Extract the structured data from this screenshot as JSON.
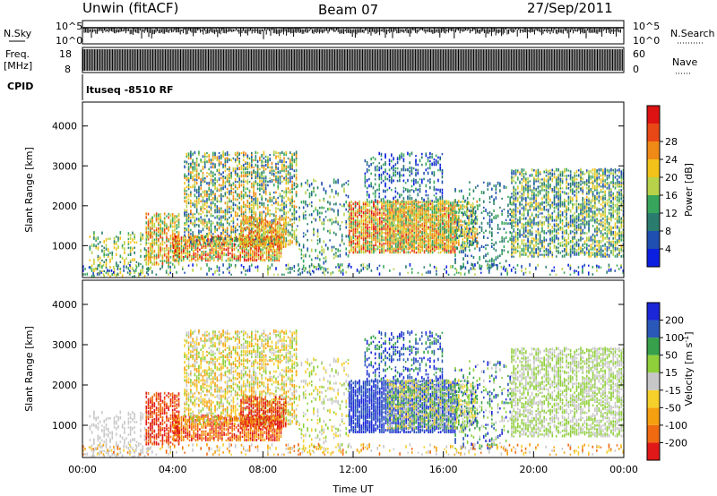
{
  "header": {
    "station": "Unwin (fitACF)",
    "beam": "Beam 07",
    "date": "27/Sep/2011"
  },
  "strips": {
    "nsky_label": "N.Sky",
    "nsky_ticks": [
      "10^5",
      "10^0"
    ],
    "nsky_ticks_right": [
      "10^5",
      "10^0"
    ],
    "nsearch_label": "N.Search",
    "freq_label_1": "Freq.",
    "freq_label_2": "[MHz]",
    "freq_ticks": [
      "18",
      "8"
    ],
    "nave_ticks": [
      "60",
      "0"
    ],
    "nave_label": "Nave",
    "cpid_label": "CPID",
    "cpid_value": "ltuseq -8510 RF"
  },
  "colors": {
    "power": [
      "#0b1fe0",
      "#1f4fb0",
      "#2a7d6e",
      "#37a65c",
      "#b8d24a",
      "#f2c21a",
      "#f08a17",
      "#e84816",
      "#dd1212"
    ],
    "velocity": [
      "#1a26d8",
      "#2a58b8",
      "#36a04a",
      "#8fcf3a",
      "#c7c7c7",
      "#f5cf2a",
      "#f5a010",
      "#f06a12",
      "#e01818"
    ]
  },
  "chart_data": [
    {
      "type": "heatmap",
      "name": "power",
      "ylabel": "Slant Range [km]",
      "yticks": [
        "1000",
        "2000",
        "3000",
        "4000"
      ],
      "ylim": [
        200,
        4600
      ],
      "colorbar_label": "Power [dB]",
      "colorbar_ticks": [
        "4",
        "8",
        "12",
        "16",
        "20",
        "24",
        "28"
      ],
      "color_range": [
        0,
        30
      ],
      "xlim": [
        0,
        24
      ]
    },
    {
      "type": "heatmap",
      "name": "velocity",
      "ylabel": "Slant Range [km]",
      "yticks": [
        "1000",
        "2000",
        "3000",
        "4000"
      ],
      "ylim": [
        200,
        4600
      ],
      "colorbar_label": "Velocity [m s",
      "colorbar_label_sup": "-1",
      "colorbar_label_end": "]",
      "colorbar_ticks": [
        "200",
        "100",
        "50",
        "15",
        "-15",
        "-50",
        "-100",
        "-200"
      ],
      "xlim": [
        0,
        24
      ],
      "xticks": [
        "00:00",
        "04:00",
        "08:00",
        "12:00",
        "16:00",
        "20:00",
        "00:00"
      ],
      "xlabel": "Time UT"
    }
  ]
}
